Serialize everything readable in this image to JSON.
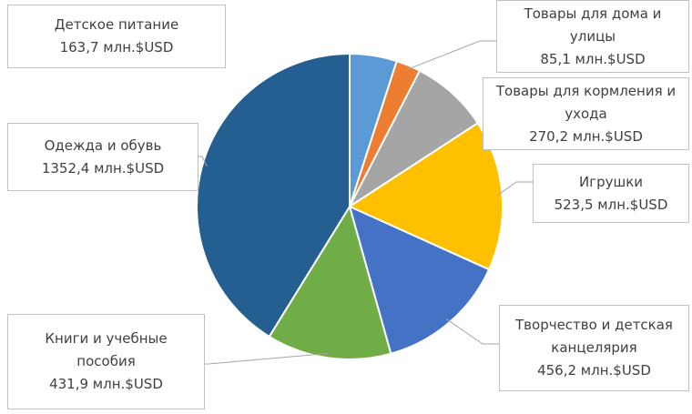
{
  "chart_data": {
    "type": "pie",
    "categories": [
      "Детское питание",
      "Товары для дома и улицы",
      "Товары для кормления и ухода",
      "Игрушки",
      "Творчество и детская канцелярия",
      "Книги и учебные пособия",
      "Одежда и обувь"
    ],
    "values": [
      163.7,
      85.1,
      270.2,
      523.5,
      456.2,
      431.9,
      1352.4
    ],
    "value_labels": [
      "163,7 млн.$USD",
      "85,1 млн.$USD",
      "270,2 млн.$USD",
      "523,5 млн.$USD",
      "456,2 млн.$USD",
      "431,9 млн.$USD",
      "1352,4 млн.$USD"
    ],
    "colors": [
      "#5b9bd5",
      "#ed7d31",
      "#a5a5a5",
      "#ffc000",
      "#4472c4",
      "#70ad47",
      "#255e91"
    ]
  }
}
